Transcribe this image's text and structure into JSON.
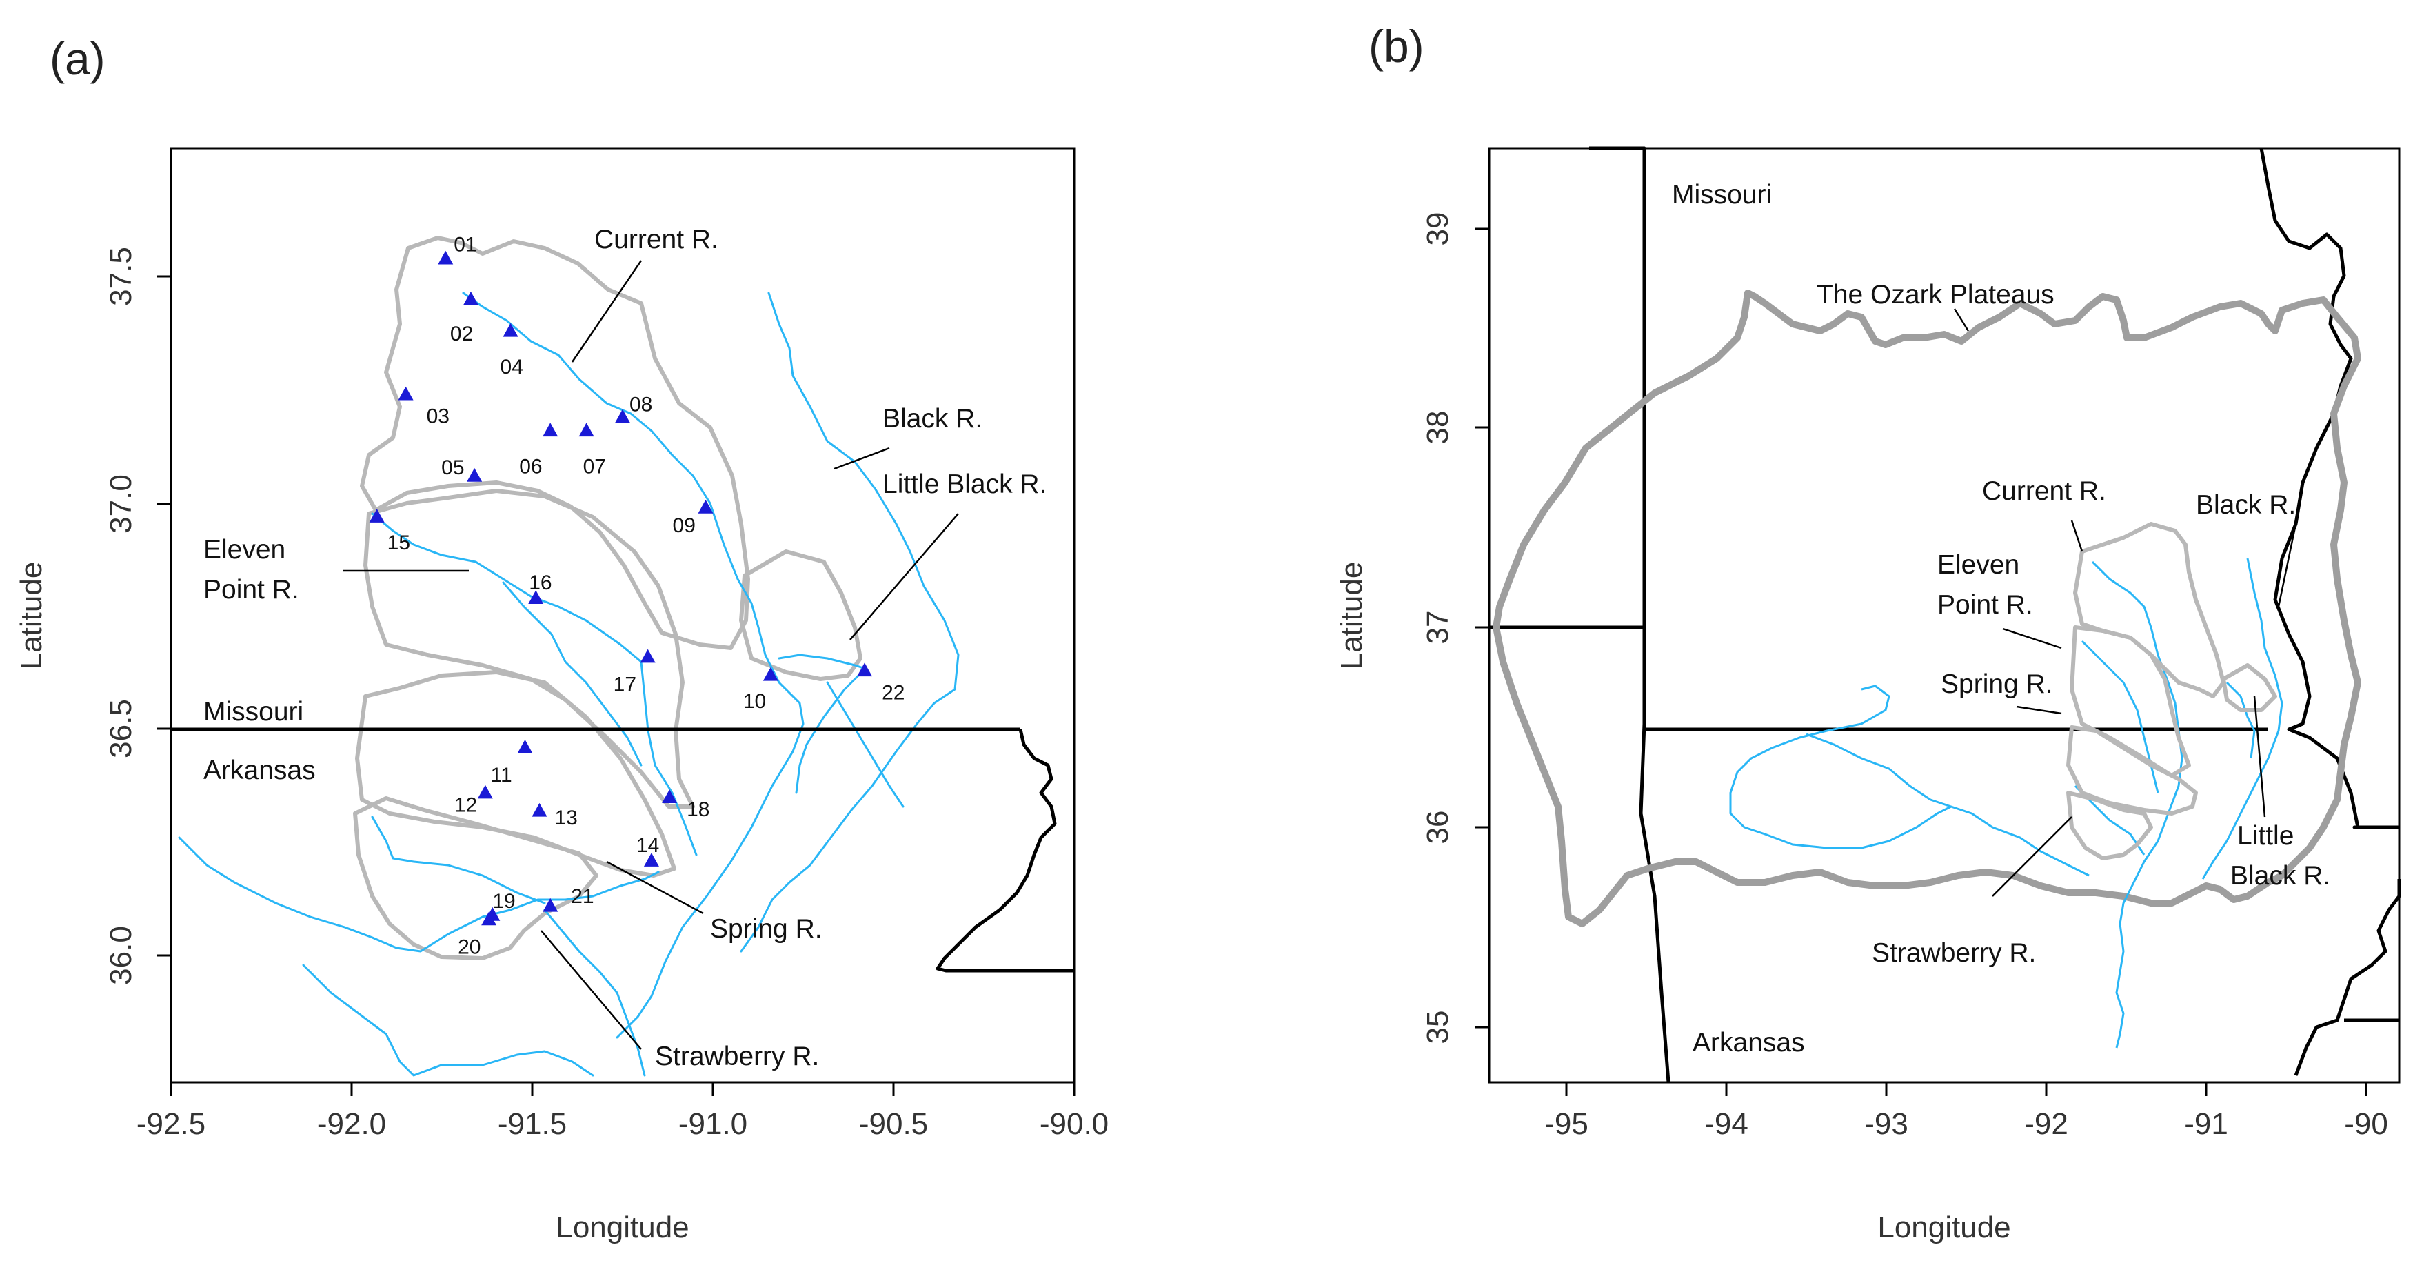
{
  "panels": [
    {
      "letter": "(a)",
      "xlabel": "Longitude",
      "ylabel": "Latitude",
      "x_ticks": [
        "-92.5",
        "-92.0",
        "-91.5",
        "-91.0",
        "-90.5",
        "-90.0"
      ],
      "y_ticks": [
        "36.0",
        "36.5",
        "37.0",
        "37.5"
      ],
      "labels": {
        "current": "Current R.",
        "black": "Black R.",
        "little_black": "Little Black R.",
        "eleven_1": "Eleven",
        "eleven_2": "Point R.",
        "missouri": "Missouri",
        "arkansas": "Arkansas",
        "spring": "Spring R.",
        "strawberry": "Strawberry R."
      },
      "sites": [
        {
          "id": "01",
          "lon": -91.74,
          "lat": 37.54
        },
        {
          "id": "02",
          "lon": -91.67,
          "lat": 37.45
        },
        {
          "id": "04",
          "lon": -91.56,
          "lat": 37.38
        },
        {
          "id": "03",
          "lon": -91.85,
          "lat": 37.24
        },
        {
          "id": "08",
          "lon": -91.25,
          "lat": 37.19
        },
        {
          "id": "06",
          "lon": -91.45,
          "lat": 37.16
        },
        {
          "id": "07",
          "lon": -91.35,
          "lat": 37.16
        },
        {
          "id": "05",
          "lon": -91.66,
          "lat": 37.06
        },
        {
          "id": "09",
          "lon": -91.02,
          "lat": 36.99
        },
        {
          "id": "15",
          "lon": -91.93,
          "lat": 36.97
        },
        {
          "id": "16",
          "lon": -91.49,
          "lat": 36.79
        },
        {
          "id": "17",
          "lon": -91.18,
          "lat": 36.66
        },
        {
          "id": "10",
          "lon": -90.84,
          "lat": 36.62
        },
        {
          "id": "22",
          "lon": -90.58,
          "lat": 36.63
        },
        {
          "id": "11",
          "lon": -91.52,
          "lat": 36.46
        },
        {
          "id": "12",
          "lon": -91.63,
          "lat": 36.36
        },
        {
          "id": "13",
          "lon": -91.48,
          "lat": 36.32
        },
        {
          "id": "18",
          "lon": -91.12,
          "lat": 36.35
        },
        {
          "id": "14",
          "lon": -91.17,
          "lat": 36.21
        },
        {
          "id": "19",
          "lon": -91.61,
          "lat": 36.09
        },
        {
          "id": "21",
          "lon": -91.45,
          "lat": 36.11
        },
        {
          "id": "20",
          "lon": -91.62,
          "lat": 36.08
        }
      ]
    },
    {
      "letter": "(b)",
      "xlabel": "Longitude",
      "ylabel": "Latitude",
      "x_ticks": [
        "-95",
        "-94",
        "-93",
        "-92",
        "-91",
        "-90"
      ],
      "y_ticks": [
        "35",
        "36",
        "37",
        "38",
        "39"
      ],
      "labels": {
        "missouri": "Missouri",
        "arkansas": "Arkansas",
        "ozark": "The Ozark Plateaus",
        "current": "Current R.",
        "black": "Black R.",
        "eleven_1": "Eleven",
        "eleven_2": "Point R.",
        "spring": "Spring R.",
        "strawberry": "Strawberry R.",
        "little_1": "Little",
        "little_2": "Black R."
      }
    }
  ],
  "colors": {
    "river": "#29b6f6",
    "watershed": "#b8b8b8",
    "ozark": "#9e9e9e",
    "border": "#000000",
    "site_marker": "#1a1ad6"
  }
}
